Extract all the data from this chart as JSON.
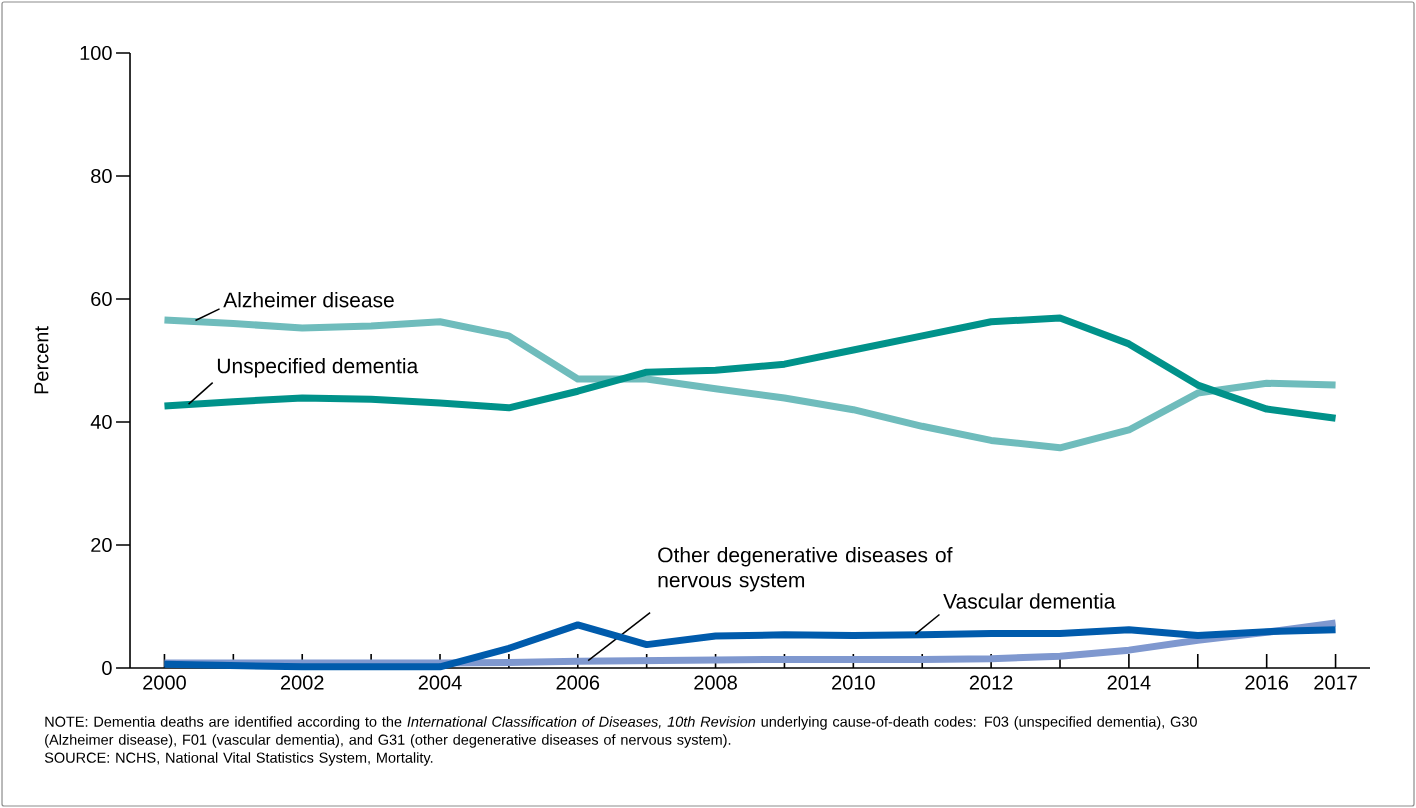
{
  "chart_data": {
    "type": "line",
    "ylabel": "Percent",
    "x": [
      2000,
      2001,
      2002,
      2003,
      2004,
      2005,
      2006,
      2007,
      2008,
      2009,
      2010,
      2011,
      2012,
      2013,
      2014,
      2015,
      2016,
      2017
    ],
    "series": [
      {
        "name": "Alzheimer disease",
        "color": "#6fbcbc",
        "values": [
          56.6,
          56.0,
          55.3,
          55.6,
          56.3,
          54.0,
          47.0,
          47.0,
          45.4,
          43.9,
          42.0,
          39.3,
          37.0,
          35.8,
          38.7,
          44.7,
          46.3,
          46.0
        ]
      },
      {
        "name": "Unspecified dementia",
        "color": "#00928a",
        "values": [
          42.6,
          43.3,
          43.9,
          43.7,
          43.1,
          42.3,
          45.0,
          48.1,
          48.4,
          49.4,
          51.7,
          54.0,
          56.3,
          56.9,
          52.7,
          46.0,
          42.1,
          40.6
        ]
      },
      {
        "name": "Other degenerative diseases of nervous system",
        "color": "#7f98cf",
        "values": [
          0.8,
          0.8,
          0.8,
          0.8,
          0.8,
          0.9,
          1.1,
          1.2,
          1.3,
          1.4,
          1.4,
          1.4,
          1.5,
          1.9,
          2.9,
          4.5,
          5.8,
          7.3
        ]
      },
      {
        "name": "Vascular dementia",
        "color": "#005bac",
        "values": [
          0.6,
          0.4,
          0.2,
          0.2,
          0.2,
          3.2,
          7.0,
          3.8,
          5.2,
          5.4,
          5.3,
          5.4,
          5.6,
          5.6,
          6.2,
          5.3,
          5.9,
          6.2
        ]
      }
    ],
    "xlim": [
      1999.5,
      2017.5
    ],
    "ylim": [
      0,
      100
    ],
    "xticks": [
      2000,
      {
        "value": 2001,
        "label": null
      },
      2002,
      {
        "value": 2003,
        "label": null
      },
      2004,
      {
        "value": 2005,
        "label": null
      },
      2006,
      {
        "value": 2007,
        "label": null
      },
      2008,
      {
        "value": 2009,
        "label": null
      },
      2010,
      {
        "value": 2011,
        "label": null
      },
      2012,
      {
        "value": 2013,
        "label": null
      },
      2014,
      {
        "value": 2015,
        "label": null
      },
      2016,
      2017
    ],
    "yticks": [
      0,
      20,
      40,
      60,
      80,
      100
    ],
    "grid": false,
    "legend": false,
    "marker": "none",
    "line_style": "solid",
    "annotations": [
      "NOTE: Dementia deaths are identified according to the *International Classification of Diseases, 10th Revision* underlying cause-of-death codes: F03 (unspecified dementia), G30 (Alzheimer disease), F01 (vascular dementia), and G31 (other degenerative diseases of nervous system).",
      "SOURCE: NCHS, National Vital Statistics System, Mortality."
    ]
  }
}
